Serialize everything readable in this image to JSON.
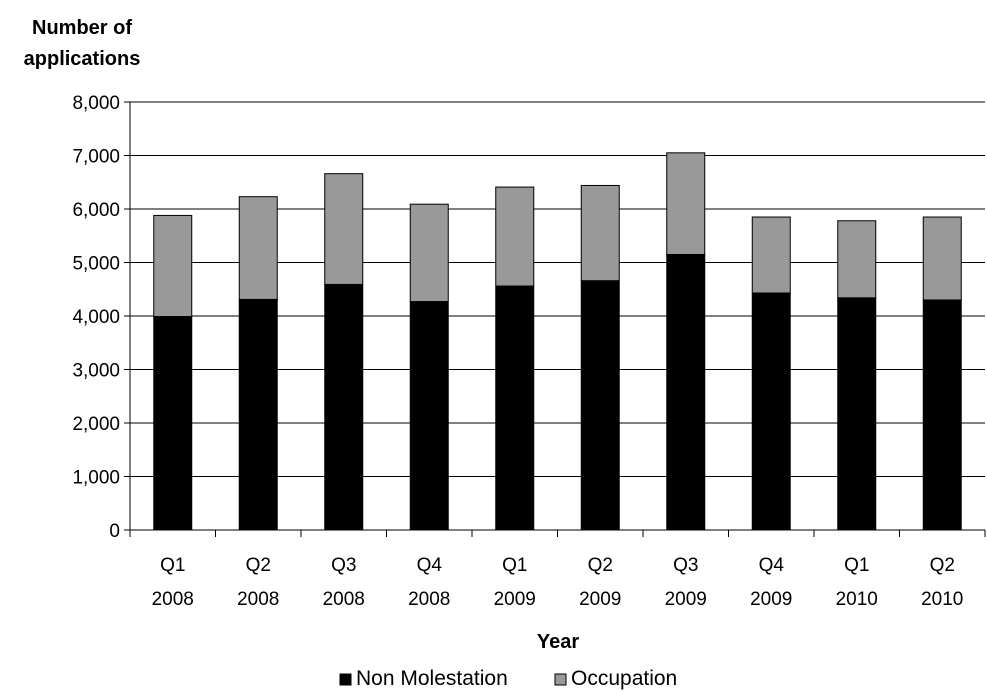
{
  "chart_data": {
    "type": "bar",
    "stacked": true,
    "ylabel": [
      "Number of",
      "applications"
    ],
    "xlabel": "Year",
    "ylim": [
      0,
      8000
    ],
    "yticks": [
      0,
      1000,
      2000,
      3000,
      4000,
      5000,
      6000,
      7000,
      8000
    ],
    "ytick_labels": [
      "0",
      "1,000",
      "2,000",
      "3,000",
      "4,000",
      "5,000",
      "6,000",
      "7,000",
      "8,000"
    ],
    "grid": true,
    "legend_position": "bottom",
    "categories": [
      [
        "Q1",
        "2008"
      ],
      [
        "Q2",
        "2008"
      ],
      [
        "Q3",
        "2008"
      ],
      [
        "Q4",
        "2008"
      ],
      [
        "Q1",
        "2009"
      ],
      [
        "Q2",
        "2009"
      ],
      [
        "Q3",
        "2009"
      ],
      [
        "Q4",
        "2009"
      ],
      [
        "Q1",
        "2010"
      ],
      [
        "Q2",
        "2010"
      ]
    ],
    "series": [
      {
        "name": "Non Molestation",
        "color": "#000000",
        "values": [
          3990,
          4310,
          4590,
          4270,
          4560,
          4660,
          5150,
          4430,
          4340,
          4300
        ]
      },
      {
        "name": "Occupation",
        "color": "#999999",
        "values": [
          1890,
          1920,
          2070,
          1820,
          1850,
          1780,
          1900,
          1420,
          1440,
          1550
        ]
      }
    ]
  }
}
